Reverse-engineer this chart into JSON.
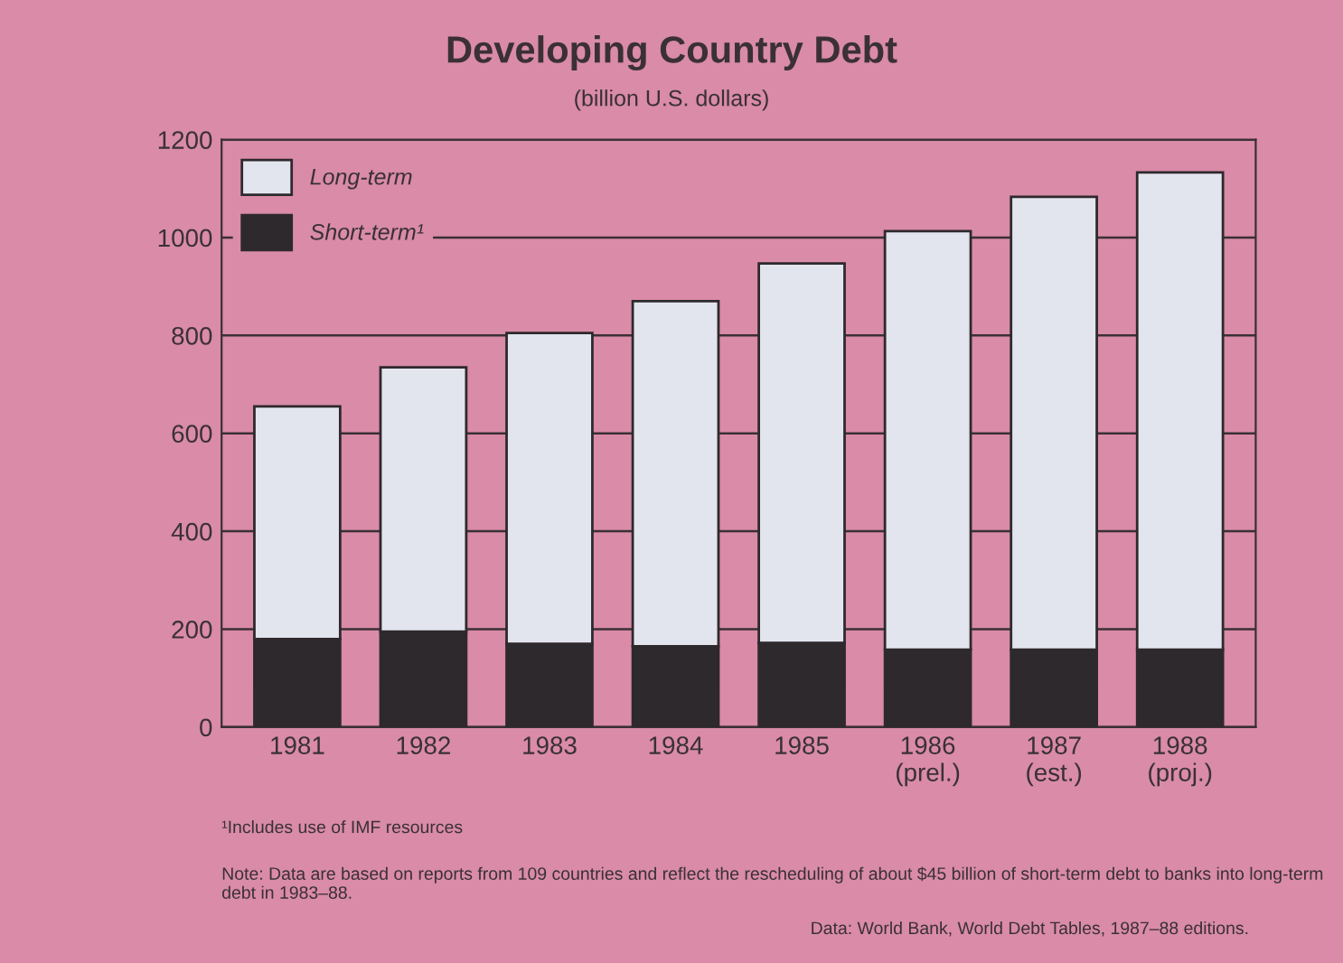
{
  "chart_data": {
    "type": "bar",
    "title": "Developing Country Debt",
    "subtitle": "(billion U.S. dollars)",
    "categories": [
      "1981",
      "1982",
      "1983",
      "1984",
      "1985",
      "1986\n(prel.)",
      "1987\n(est.)",
      "1988\n(proj.)"
    ],
    "stacked": true,
    "series": [
      {
        "name": "Short-term¹",
        "color": "#2e292d",
        "values": [
          180,
          195,
          170,
          165,
          172,
          158,
          158,
          158
        ]
      },
      {
        "name": "Long-term",
        "color": "#e3e5ee",
        "values": [
          475,
          540,
          635,
          705,
          775,
          855,
          925,
          975
        ]
      }
    ],
    "ylim": [
      0,
      1200
    ],
    "yticks": [
      0,
      200,
      400,
      600,
      800,
      1000,
      1200
    ],
    "grid": "y",
    "legend": "top left",
    "annotations": [
      "¹Includes use of IMF resources",
      "Note: Data are based on reports from 109 countries and reflect the rescheduling of about $45 billion of short-term debt to banks into long-term debt in 1983–88.",
      "Data: World Bank, World Debt Tables, 1987–88 editions."
    ]
  }
}
